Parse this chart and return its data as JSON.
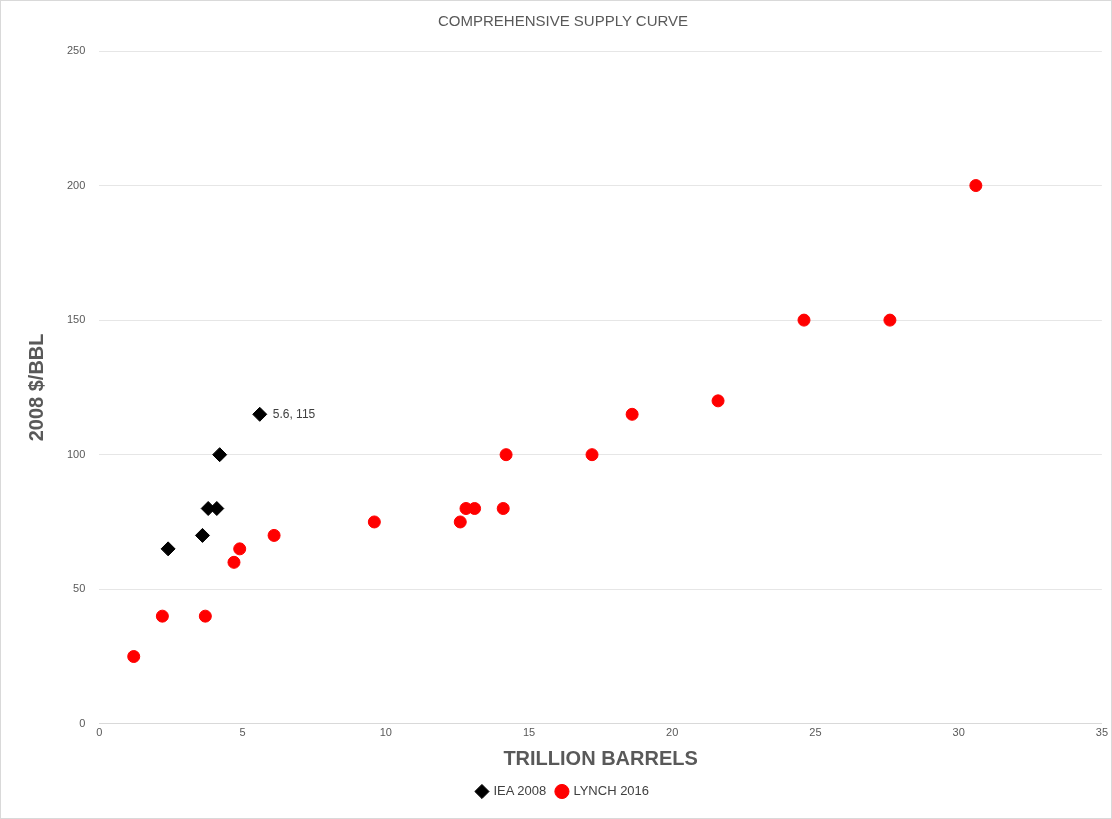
{
  "chart_data": {
    "type": "scatter",
    "title": "COMPREHENSIVE SUPPLY CURVE",
    "xlabel": "TRILLION BARRELS",
    "ylabel": "2008 $/BBL",
    "xlim": [
      0,
      35
    ],
    "xticks": [
      0,
      5,
      10,
      15,
      20,
      25,
      30,
      35
    ],
    "ylim": [
      0,
      250
    ],
    "yticks": [
      0,
      50,
      100,
      150,
      200,
      250
    ],
    "grid": "y",
    "legend": "bottom",
    "series": [
      {
        "name": "IEA 2008",
        "color": "#000000",
        "marker": "diamond",
        "x": [
          2.4,
          3.6,
          3.8,
          4.1,
          4.2,
          5.6
        ],
        "values": [
          65,
          70,
          80,
          80,
          100,
          115
        ]
      },
      {
        "name": "LYNCH 2016",
        "color": "#ff0000",
        "marker": "circle",
        "x": [
          1.2,
          2.2,
          3.7,
          4.7,
          4.9,
          6.1,
          9.6,
          12.6,
          12.8,
          13.1,
          14.1,
          14.2,
          17.2,
          18.6,
          21.6,
          24.6,
          27.6,
          30.6
        ],
        "values": [
          25,
          40,
          40,
          60,
          65,
          70,
          75,
          75,
          80,
          80,
          80,
          100,
          100,
          115,
          120,
          150,
          150,
          200
        ]
      }
    ],
    "annotations": [
      {
        "text": "5.6, 115",
        "x": 5.6,
        "y": 115
      }
    ]
  }
}
